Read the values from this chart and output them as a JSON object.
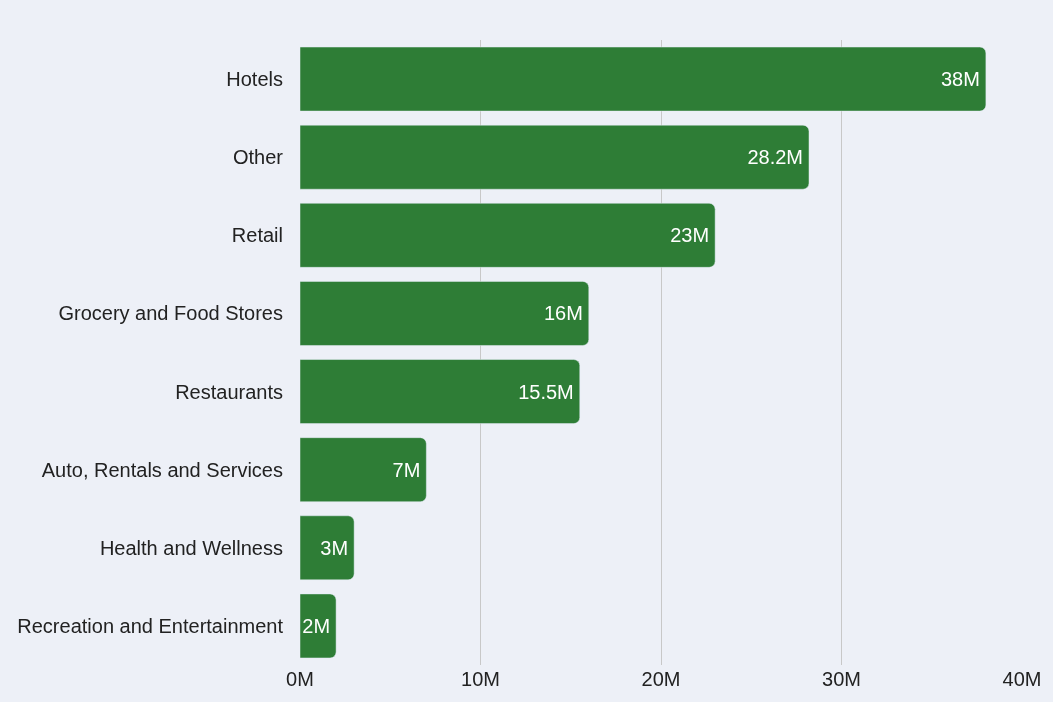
{
  "chart_data": {
    "type": "bar",
    "orientation": "horizontal",
    "categories": [
      "Hotels",
      "Other",
      "Retail",
      "Grocery and Food Stores",
      "Restaurants",
      "Auto, Rentals and Services",
      "Health and Wellness",
      "Recreation and Entertainment"
    ],
    "values": [
      38,
      28.2,
      23,
      16,
      15.5,
      7,
      3,
      2
    ],
    "value_labels": [
      "38M",
      "28.2M",
      "23M",
      "16M",
      "15.5M",
      "7M",
      "3M",
      "2M"
    ],
    "color": "#2e7d36",
    "xlim": [
      0,
      40
    ],
    "xticks": [
      {
        "value": 0,
        "label": "0M"
      },
      {
        "value": 10,
        "label": "10M"
      },
      {
        "value": 20,
        "label": "20M"
      },
      {
        "value": 30,
        "label": "30M"
      },
      {
        "value": 40,
        "label": "40M"
      }
    ],
    "grid": "x",
    "legend": false
  }
}
